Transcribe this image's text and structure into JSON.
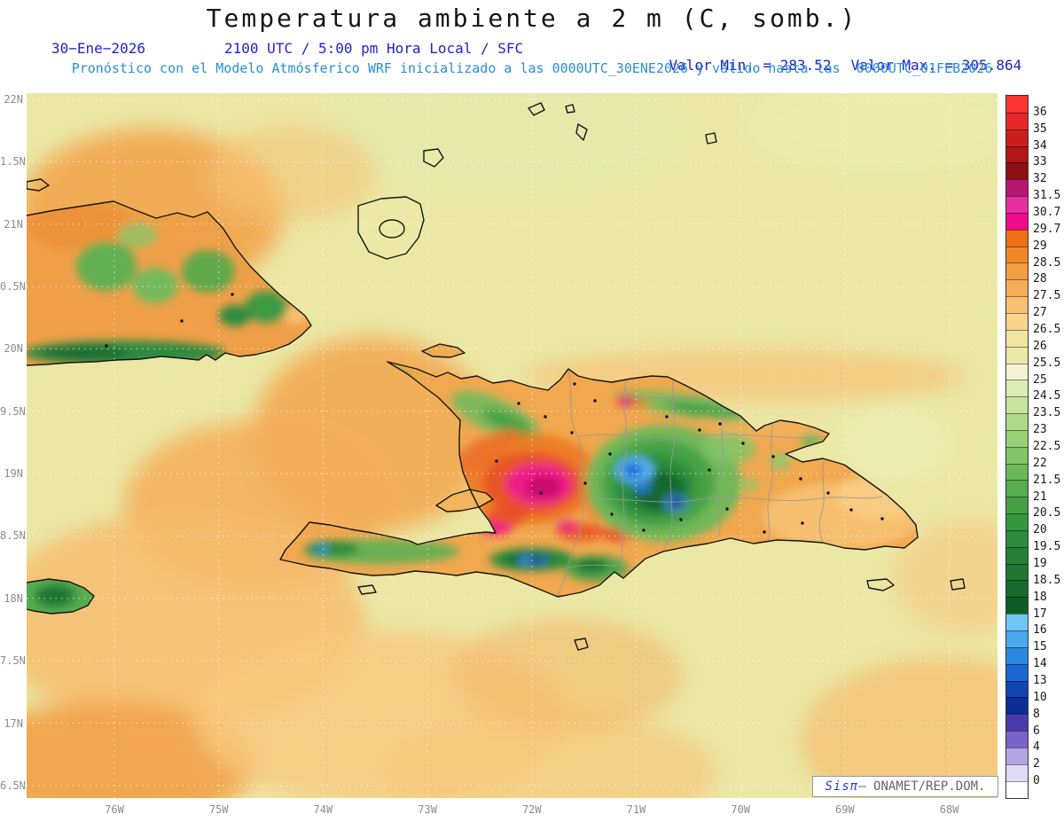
{
  "header": {
    "title": "Temperatura ambiente a 2 m (C, somb.)",
    "date": "30−Ene−2026",
    "time_line": "2100 UTC / 5:00 pm Hora Local / SFC",
    "min_label": "Valor Min. = 283.52",
    "max_label": "Valor Max. = 305.864",
    "model_line": "Pronóstico con el Modelo Atmósferico WRF inicializado a las 0000UTC_30ENE2026 y válido hasta las  0000UTC_01FEB2026"
  },
  "axes": {
    "lat_labels": [
      "22N",
      "1.5N",
      "21N",
      "0.5N",
      "20N",
      "9.5N",
      "19N",
      "8.5N",
      "18N",
      "7.5N",
      "17N",
      "6.5N"
    ],
    "lon_labels": [
      "76W",
      "75W",
      "74W",
      "73W",
      "72W",
      "71W",
      "70W",
      "69W",
      "68W"
    ]
  },
  "colorbar": {
    "labels": [
      "36",
      "35",
      "34",
      "33",
      "32",
      "31.5",
      "30.7",
      "29.7",
      "29",
      "28.5",
      "28",
      "27.5",
      "27",
      "26.5",
      "26",
      "25.5",
      "25",
      "24.5",
      "23.5",
      "23",
      "22.5",
      "22",
      "21.5",
      "21",
      "20.5",
      "20",
      "19.5",
      "19",
      "18.5",
      "18",
      "17",
      "16",
      "15",
      "14",
      "13",
      "10",
      "8",
      "6",
      "4",
      "2",
      "0"
    ],
    "colors": [
      "#fd3535",
      "#e62828",
      "#cc1e1e",
      "#b21616",
      "#8e1010",
      "#b5186e",
      "#e62e9e",
      "#f00a8c",
      "#ee7014",
      "#f08828",
      "#f49c40",
      "#f6ae56",
      "#f8c070",
      "#f8d48c",
      "#f0e6a2",
      "#ece9a8",
      "#f5f2d4",
      "#ddedb6",
      "#c6e49e",
      "#aeda8a",
      "#98d07a",
      "#80c468",
      "#6ab85a",
      "#56ac4e",
      "#44a046",
      "#36963e",
      "#2c8c3a",
      "#248034",
      "#1e7630",
      "#186a2c",
      "#115c26",
      "#6ec6f0",
      "#48a8ea",
      "#2a88e0",
      "#1a66d2",
      "#1244b4",
      "#0c2c96",
      "#4a3aaa",
      "#7a62c8",
      "#b2a4e2",
      "#e0daf4",
      "#ffffff"
    ]
  },
  "credit": {
    "brand": "Sisπ",
    "suffix": "– ONAMET/REP.DOM."
  },
  "colors": {
    "header_blue": "#2222cc",
    "model_blue": "#2a8fd8",
    "axis_gray": "#8c8c8c",
    "sea_base": "#ebe8a6"
  }
}
